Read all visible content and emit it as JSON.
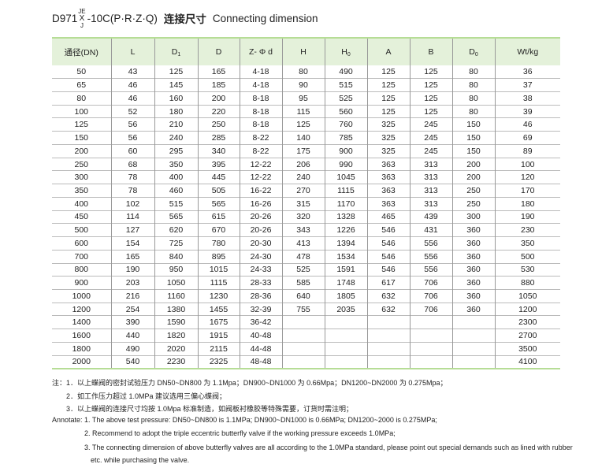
{
  "title": {
    "model_prefix": "D971",
    "model_top": "JE",
    "model_mid": "X",
    "model_bottom": "J",
    "model_suffix": "-10C(P·R·Z·Q)",
    "cn": "连接尺寸",
    "en": "Connecting dimension"
  },
  "table": {
    "headers": [
      {
        "main": "通径(DN)",
        "sub": ""
      },
      {
        "main": "L",
        "sub": ""
      },
      {
        "main": "D",
        "sub": "1"
      },
      {
        "main": "D",
        "sub": ""
      },
      {
        "main": "Z- Φ d",
        "sub": ""
      },
      {
        "main": "H",
        "sub": ""
      },
      {
        "main": "H",
        "sub": "0"
      },
      {
        "main": "A",
        "sub": ""
      },
      {
        "main": "B",
        "sub": ""
      },
      {
        "main": "D",
        "sub": "0"
      },
      {
        "main": "Wt/kg",
        "sub": ""
      }
    ],
    "rows": [
      [
        "50",
        "43",
        "125",
        "165",
        "4-18",
        "80",
        "490",
        "125",
        "125",
        "80",
        "36"
      ],
      [
        "65",
        "46",
        "145",
        "185",
        "4-18",
        "90",
        "515",
        "125",
        "125",
        "80",
        "37"
      ],
      [
        "80",
        "46",
        "160",
        "200",
        "8-18",
        "95",
        "525",
        "125",
        "125",
        "80",
        "38"
      ],
      [
        "100",
        "52",
        "180",
        "220",
        "8-18",
        "115",
        "560",
        "125",
        "125",
        "80",
        "39"
      ],
      [
        "125",
        "56",
        "210",
        "250",
        "8-18",
        "125",
        "760",
        "325",
        "245",
        "150",
        "46"
      ],
      [
        "150",
        "56",
        "240",
        "285",
        "8-22",
        "140",
        "785",
        "325",
        "245",
        "150",
        "69"
      ],
      [
        "200",
        "60",
        "295",
        "340",
        "8-22",
        "175",
        "900",
        "325",
        "245",
        "150",
        "89"
      ],
      [
        "250",
        "68",
        "350",
        "395",
        "12-22",
        "206",
        "990",
        "363",
        "313",
        "200",
        "100"
      ],
      [
        "300",
        "78",
        "400",
        "445",
        "12-22",
        "240",
        "1045",
        "363",
        "313",
        "200",
        "120"
      ],
      [
        "350",
        "78",
        "460",
        "505",
        "16-22",
        "270",
        "1115",
        "363",
        "313",
        "250",
        "170"
      ],
      [
        "400",
        "102",
        "515",
        "565",
        "16-26",
        "315",
        "1170",
        "363",
        "313",
        "250",
        "180"
      ],
      [
        "450",
        "114",
        "565",
        "615",
        "20-26",
        "320",
        "1328",
        "465",
        "439",
        "300",
        "190"
      ],
      [
        "500",
        "127",
        "620",
        "670",
        "20-26",
        "343",
        "1226",
        "546",
        "431",
        "360",
        "230"
      ],
      [
        "600",
        "154",
        "725",
        "780",
        "20-30",
        "413",
        "1394",
        "546",
        "556",
        "360",
        "350"
      ],
      [
        "700",
        "165",
        "840",
        "895",
        "24-30",
        "478",
        "1534",
        "546",
        "556",
        "360",
        "500"
      ],
      [
        "800",
        "190",
        "950",
        "1015",
        "24-33",
        "525",
        "1591",
        "546",
        "556",
        "360",
        "530"
      ],
      [
        "900",
        "203",
        "1050",
        "1115",
        "28-33",
        "585",
        "1748",
        "617",
        "706",
        "360",
        "880"
      ],
      [
        "1000",
        "216",
        "1160",
        "1230",
        "28-36",
        "640",
        "1805",
        "632",
        "706",
        "360",
        "1050"
      ],
      [
        "1200",
        "254",
        "1380",
        "1455",
        "32-39",
        "755",
        "2035",
        "632",
        "706",
        "360",
        "1200"
      ],
      [
        "1400",
        "390",
        "1590",
        "1675",
        "36-42",
        "",
        "",
        "",
        "",
        "",
        "2300"
      ],
      [
        "1600",
        "440",
        "1820",
        "1915",
        "40-48",
        "",
        "",
        "",
        "",
        "",
        "2700"
      ],
      [
        "1800",
        "490",
        "2020",
        "2115",
        "44-48",
        "",
        "",
        "",
        "",
        "",
        "3500"
      ],
      [
        "2000",
        "540",
        "2230",
        "2325",
        "48-48",
        "",
        "",
        "",
        "",
        "",
        "4100"
      ]
    ]
  },
  "notes": {
    "cn": [
      "注：1．以上蝶阀的密封试验压力 DN50~DN800 为 1.1Mpa；DN900~DN1000 为 0.66Mpa；DN1200~DN2000 为 0.275Mpa；",
      "2．如工作压力超过 1.0MPa 建议选用三偏心蝶阀；",
      "3．以上蝶阀的连接尺寸均按 1.0Mpa 标准制造，如阀板衬橡胶等特殊需要，订货时需注明；"
    ],
    "en": [
      "Annotate: 1. The above test pressure: DN50~DN800 is 1.1MPa; DN900~DN1000 is 0.66MPa; DN1200~2000 is 0.275MPa;",
      "2. Recommend to adopt the triple eccentric butterfly valve if the working pressure exceeds 1.0MPa;",
      "3. The connecting dimension of above butterfly valves are all according to the 1.0MPa standard, please point out special demands such as lined with rubber",
      "etc. while purchasing the valve."
    ]
  }
}
